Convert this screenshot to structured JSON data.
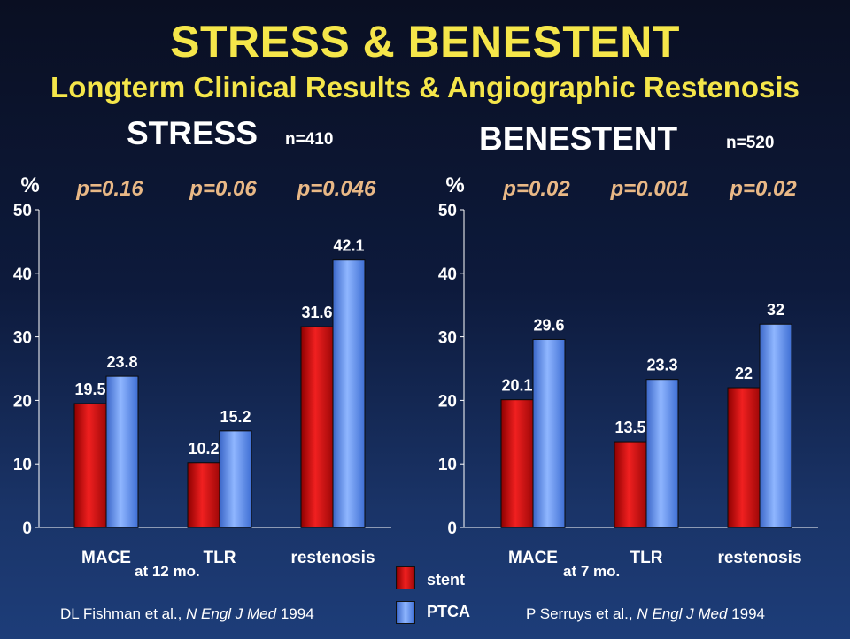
{
  "title": "STRESS & BENESTENT",
  "subtitle": "Longterm Clinical Results & Angiographic Restenosis",
  "colors": {
    "title": "#f5e64a",
    "pvalue": "#e9b886",
    "stent": "#d81414",
    "ptca": "#5b8ff0"
  },
  "legend": {
    "stent": "stent",
    "ptca": "PTCA"
  },
  "chart_data": [
    {
      "type": "bar",
      "title": "STRESS",
      "n_label": "n=410",
      "ylabel": "%",
      "ylim": [
        0,
        50
      ],
      "yticks": [
        "0",
        "10",
        "20",
        "30",
        "40",
        "50"
      ],
      "categories": [
        "MACE",
        "TLR",
        "restenosis"
      ],
      "p_values": [
        "p=0.16",
        "p=0.06",
        "p=0.046"
      ],
      "series": [
        {
          "name": "stent",
          "values": [
            19.5,
            10.2,
            31.6
          ],
          "labels": [
            "19.5",
            "10.2",
            "31.6"
          ]
        },
        {
          "name": "PTCA",
          "values": [
            23.8,
            15.2,
            42.1
          ],
          "labels": [
            "23.8",
            "15.2",
            "42.1"
          ]
        }
      ],
      "annotation": "at 12 mo.",
      "citation": {
        "authors": "DL Fishman et al.,",
        "journal": "N Engl J Med",
        "year": "1994"
      }
    },
    {
      "type": "bar",
      "title": "BENESTENT",
      "n_label": "n=520",
      "ylabel": "%",
      "ylim": [
        0,
        50
      ],
      "yticks": [
        "0",
        "10",
        "20",
        "30",
        "40",
        "50"
      ],
      "categories": [
        "MACE",
        "TLR",
        "restenosis"
      ],
      "p_values": [
        "p=0.02",
        "p=0.001",
        "p=0.02"
      ],
      "series": [
        {
          "name": "stent",
          "values": [
            20.1,
            13.5,
            22
          ],
          "labels": [
            "20.1",
            "13.5",
            "22"
          ]
        },
        {
          "name": "PTCA",
          "values": [
            29.6,
            23.3,
            32
          ],
          "labels": [
            "29.6",
            "23.3",
            "32"
          ]
        }
      ],
      "annotation": "at 7 mo.",
      "citation": {
        "authors": "P Serruys et al.,",
        "journal": "N Engl J Med",
        "year": "1994"
      }
    }
  ]
}
